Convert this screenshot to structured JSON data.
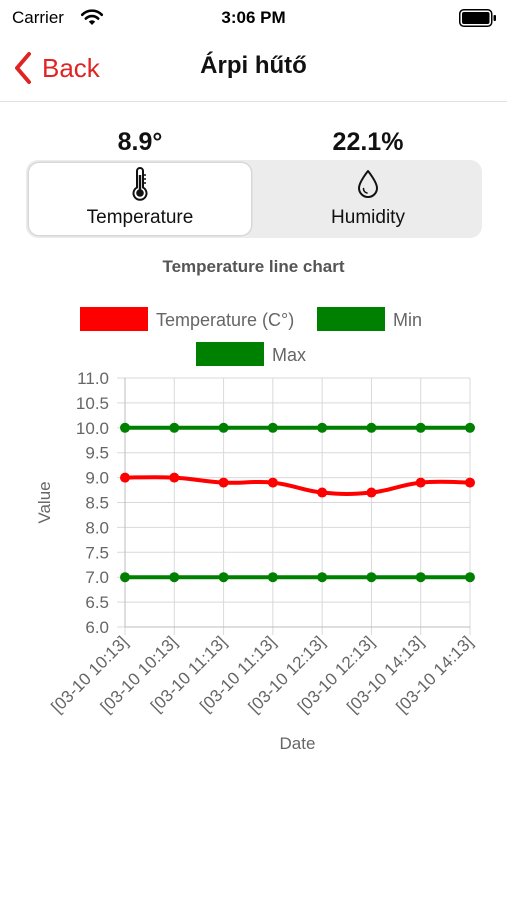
{
  "status_bar": {
    "carrier": "Carrier",
    "time": "3:06 PM"
  },
  "nav": {
    "back_label": "Back",
    "title": "Árpi hűtő",
    "accent_color": "#e02424"
  },
  "readings": {
    "temperature": "8.9°",
    "humidity": "22.1%"
  },
  "tabs": [
    {
      "label": "Temperature",
      "icon": "thermometer-icon",
      "selected": true
    },
    {
      "label": "Humidity",
      "icon": "droplet-icon",
      "selected": false
    }
  ],
  "chart_title": "Temperature line chart",
  "chart_data": {
    "type": "line",
    "xlabel": "Date",
    "ylabel": "Value",
    "ylim": [
      6.0,
      11.0
    ],
    "y_ticks": [
      "6.0",
      "6.5",
      "7.0",
      "7.5",
      "8.0",
      "8.5",
      "9.0",
      "9.5",
      "10.0",
      "10.5",
      "11.0"
    ],
    "categories": [
      "[03-10 10:13]",
      "[03-10 10:13]",
      "[03-10 11:13]",
      "[03-10 11:13]",
      "[03-10 12:13]",
      "[03-10 12:13]",
      "[03-10 14:13]",
      "[03-10 14:13]"
    ],
    "grid": true,
    "legend_position": "top",
    "series": [
      {
        "name": "Temperature (C°)",
        "color": "#ff0000",
        "values": [
          9.0,
          9.0,
          8.9,
          8.9,
          8.7,
          8.7,
          8.9,
          8.9
        ]
      },
      {
        "name": "Min",
        "color": "#008000",
        "values": [
          7.0,
          7.0,
          7.0,
          7.0,
          7.0,
          7.0,
          7.0,
          7.0
        ]
      },
      {
        "name": "Max",
        "color": "#008000",
        "values": [
          10.0,
          10.0,
          10.0,
          10.0,
          10.0,
          10.0,
          10.0,
          10.0
        ]
      }
    ]
  }
}
